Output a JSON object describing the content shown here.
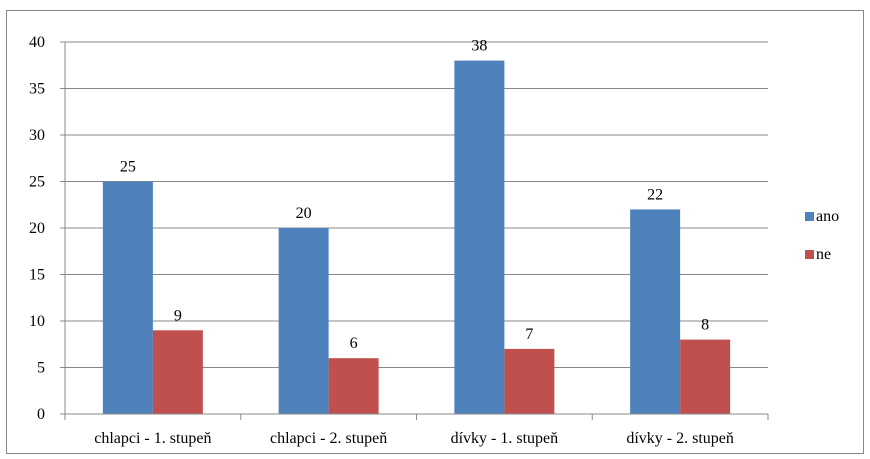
{
  "chart_data": {
    "type": "bar",
    "title": "",
    "xlabel": "",
    "ylabel": "",
    "categories": [
      "chlapci - 1. stupeň",
      "chlapci - 2. stupeň",
      "dívky - 1. stupeň",
      "dívky - 2. stupeň"
    ],
    "series": [
      {
        "name": "ano",
        "values": [
          25,
          20,
          38,
          22
        ],
        "color": "#4F81BD"
      },
      {
        "name": "ne",
        "values": [
          9,
          6,
          7,
          8
        ],
        "color": "#C0504D"
      }
    ],
    "ylim": [
      0,
      40
    ],
    "yticks": [
      "0",
      "5",
      "10",
      "15",
      "20",
      "25",
      "30",
      "35",
      "40"
    ],
    "data_labels": true,
    "grid": true,
    "legend_position": "right"
  }
}
